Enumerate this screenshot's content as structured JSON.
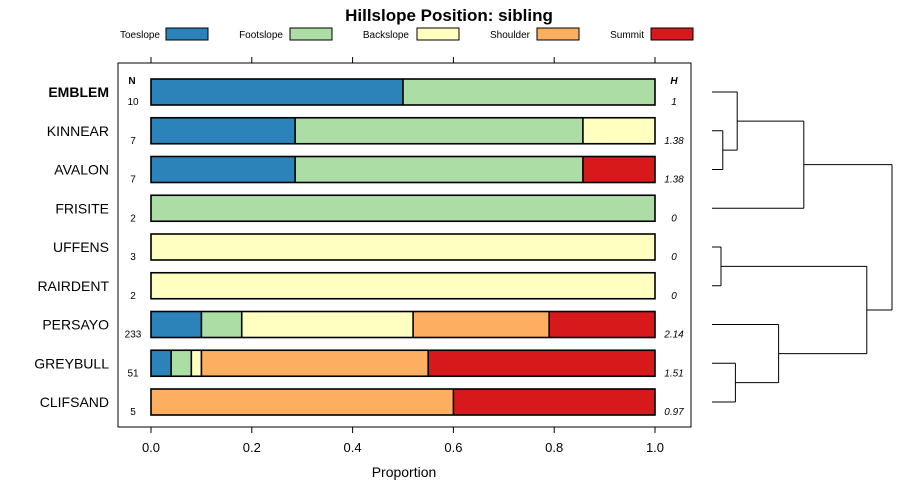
{
  "chart_data": {
    "type": "bar",
    "orientation": "horizontal",
    "stacked": true,
    "title": "Hillslope Position: sibling",
    "xlabel": "Proportion",
    "ylabel": "",
    "xlim": [
      0,
      1
    ],
    "xticks": [
      "0.0",
      "0.2",
      "0.4",
      "0.6",
      "0.8",
      "1.0"
    ],
    "xtick_values": [
      0,
      0.2,
      0.4,
      0.6,
      0.8,
      1.0
    ],
    "n_header": "N",
    "h_header": "H",
    "legend": {
      "placement": "top",
      "entries": [
        {
          "name": "Toeslope",
          "color": "#2b83ba"
        },
        {
          "name": "Footslope",
          "color": "#abdda4"
        },
        {
          "name": "Backslope",
          "color": "#ffffbf"
        },
        {
          "name": "Shoulder",
          "color": "#fdae61"
        },
        {
          "name": "Summit",
          "color": "#d7191c"
        }
      ]
    },
    "rows": [
      {
        "name": "EMBLEM",
        "bold": true,
        "n": "10",
        "h": "1",
        "values": [
          0.5,
          0.5,
          0,
          0,
          0
        ]
      },
      {
        "name": "KINNEAR",
        "bold": false,
        "n": "7",
        "h": "1.38",
        "values": [
          0.286,
          0.571,
          0.143,
          0,
          0
        ]
      },
      {
        "name": "AVALON",
        "bold": false,
        "n": "7",
        "h": "1.38",
        "values": [
          0.286,
          0.571,
          0,
          0,
          0.143
        ]
      },
      {
        "name": "FRISITE",
        "bold": false,
        "n": "2",
        "h": "0",
        "values": [
          0,
          1,
          0,
          0,
          0
        ]
      },
      {
        "name": "UFFENS",
        "bold": false,
        "n": "3",
        "h": "0",
        "values": [
          0,
          0,
          1,
          0,
          0
        ]
      },
      {
        "name": "RAIRDENT",
        "bold": false,
        "n": "2",
        "h": "0",
        "values": [
          0,
          0,
          1,
          0,
          0
        ]
      },
      {
        "name": "PERSAYO",
        "bold": false,
        "n": "233",
        "h": "2.14",
        "values": [
          0.1,
          0.08,
          0.34,
          0.27,
          0.21
        ]
      },
      {
        "name": "GREYBULL",
        "bold": false,
        "n": "51",
        "h": "1.51",
        "values": [
          0.04,
          0.04,
          0.02,
          0.45,
          0.45
        ]
      },
      {
        "name": "CLIFSAND",
        "bold": false,
        "n": "5",
        "h": "0.97",
        "values": [
          0,
          0,
          0,
          0.6,
          0.4
        ]
      }
    ],
    "dendrogram": {
      "description": "hierarchical clustering of rows by composition",
      "merges": [
        {
          "id": "c1",
          "left": "KINNEAR",
          "right": "AVALON",
          "height": 0.06
        },
        {
          "id": "c2",
          "left": "EMBLEM",
          "right": "c1",
          "height": 0.14
        },
        {
          "id": "c3",
          "left": "UFFENS",
          "right": "RAIRDENT",
          "height": 0.05
        },
        {
          "id": "c4",
          "left": "GREYBULL",
          "right": "CLIFSAND",
          "height": 0.13
        },
        {
          "id": "c5",
          "left": "FRISITE",
          "right": "c2",
          "height": 0.51
        },
        {
          "id": "c6",
          "left": "PERSAYO",
          "right": "c4",
          "height": 0.37
        },
        {
          "id": "c7",
          "left": "c3",
          "right": "c6",
          "height": 0.86
        },
        {
          "id": "c8",
          "left": "c5",
          "right": "c7",
          "height": 1.0
        }
      ]
    }
  }
}
